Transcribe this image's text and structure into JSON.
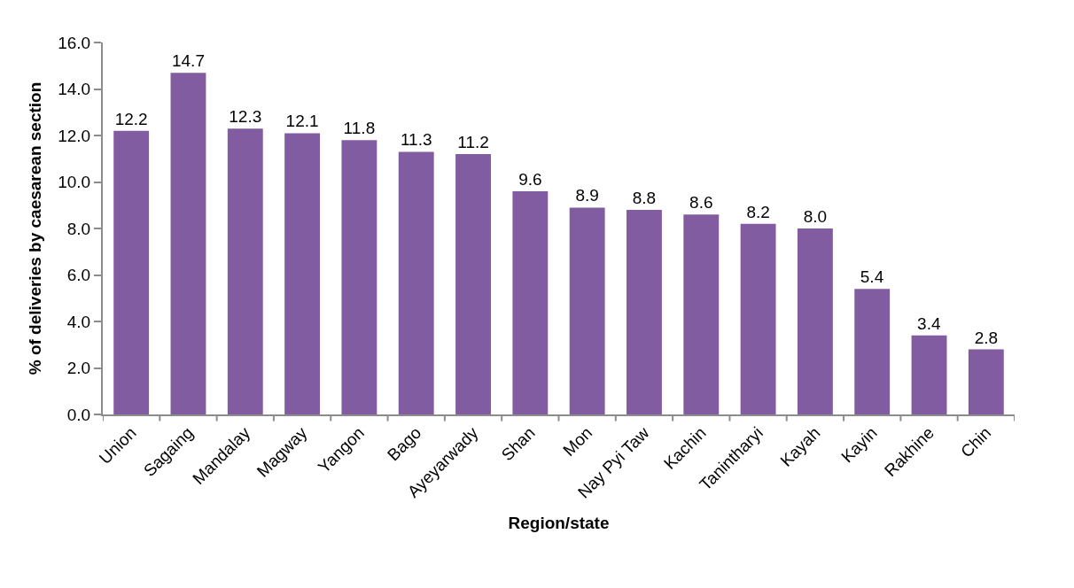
{
  "chart_data": {
    "type": "bar",
    "xlabel": "Region/state",
    "ylabel": "% of deliveries by caesarean section",
    "categories": [
      "Union",
      "Sagaing",
      "Mandalay",
      "Magway",
      "Yangon",
      "Bago",
      "Ayeyarwady",
      "Shan",
      "Mon",
      "Nay Pyi Taw",
      "Kachin",
      "Tanintharyi",
      "Kayah",
      "Kayin",
      "Rakhine",
      "Chin"
    ],
    "values": [
      12.2,
      14.7,
      12.3,
      12.1,
      11.8,
      11.3,
      11.2,
      9.6,
      8.9,
      8.8,
      8.6,
      8.2,
      8.0,
      5.4,
      3.4,
      2.8
    ],
    "color": "#825ca0",
    "ylim": [
      0,
      16
    ],
    "yticks": [
      {
        "value": 0,
        "label": "0.0"
      },
      {
        "value": 2,
        "label": "2.0"
      },
      {
        "value": 4,
        "label": "4.0"
      },
      {
        "value": 6,
        "label": "6.0"
      },
      {
        "value": 8,
        "label": "8.0"
      },
      {
        "value": 10,
        "label": "10.0"
      },
      {
        "value": 12,
        "label": "12.0"
      },
      {
        "value": 14,
        "label": "14.0"
      },
      {
        "value": 16,
        "label": "16.0"
      }
    ],
    "value_labels": [
      "12.2",
      "14.7",
      "12.3",
      "12.1",
      "11.8",
      "11.3",
      "11.2",
      "9.6",
      "8.9",
      "8.8",
      "8.6",
      "8.2",
      "8.0",
      "5.4",
      "3.4",
      "2.8"
    ],
    "grid": false
  }
}
